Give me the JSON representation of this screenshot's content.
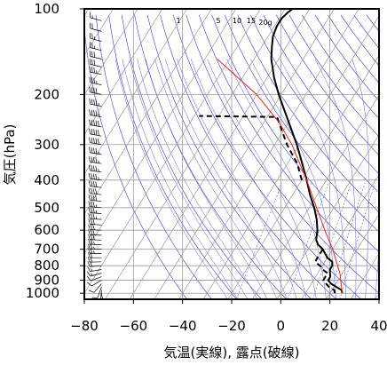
{
  "chart_data": {
    "type": "line",
    "subtype": "skew-T log-P diagram",
    "xlabel": "気温(実線), 露点(破線)",
    "ylabel": "気圧(hPa)",
    "xlim": [
      -80,
      40
    ],
    "ylim": [
      1050,
      100
    ],
    "y_scale": "log",
    "x_ticks": [
      -80,
      -60,
      -40,
      -20,
      0,
      20,
      40
    ],
    "y_ticks": [
      100,
      200,
      300,
      400,
      500,
      600,
      700,
      800,
      900,
      1000
    ],
    "mixing_ratio_labels": [
      "1",
      "5",
      "10",
      "15",
      "20g"
    ],
    "grid": true,
    "series": [
      {
        "key": "temperature",
        "style": "solid",
        "color": "#000000",
        "points": [
          [
            1000,
            25
          ],
          [
            975,
            24
          ],
          [
            950,
            21
          ],
          [
            925,
            18
          ],
          [
            900,
            16
          ],
          [
            875,
            16
          ],
          [
            850,
            15
          ],
          [
            825,
            14
          ],
          [
            800,
            14
          ],
          [
            775,
            13
          ],
          [
            750,
            10
          ],
          [
            725,
            8
          ],
          [
            700,
            6
          ],
          [
            675,
            3
          ],
          [
            650,
            1
          ],
          [
            600,
            -1
          ],
          [
            550,
            -4
          ],
          [
            500,
            -8
          ],
          [
            450,
            -13
          ],
          [
            400,
            -18
          ],
          [
            350,
            -24
          ],
          [
            300,
            -31
          ],
          [
            250,
            -40
          ],
          [
            200,
            -51
          ],
          [
            175,
            -57
          ],
          [
            150,
            -63
          ],
          [
            135,
            -66
          ],
          [
            125,
            -68
          ],
          [
            115,
            -69
          ],
          [
            108,
            -69
          ],
          [
            103,
            -68
          ],
          [
            100,
            -67
          ]
        ]
      },
      {
        "key": "dewpoint",
        "style": "dashed",
        "color": "#000000",
        "points": [
          [
            1000,
            22
          ],
          [
            975,
            21
          ],
          [
            950,
            18
          ],
          [
            925,
            16
          ],
          [
            900,
            14
          ],
          [
            850,
            14
          ],
          [
            825,
            11
          ],
          [
            800,
            9
          ],
          [
            775,
            6
          ],
          [
            750,
            6
          ],
          [
            700,
            6
          ],
          [
            null,
            null
          ],
          [
            400,
            -20
          ],
          [
            350,
            -26
          ],
          [
            300,
            -35
          ],
          [
            250,
            -44
          ],
          [
            240,
            -46
          ],
          [
            238,
            -78
          ]
        ]
      },
      {
        "key": "parcel",
        "style": "solid",
        "color": "#e8241e",
        "points": [
          [
            1000,
            25
          ],
          [
            850,
            19
          ],
          [
            700,
            10
          ],
          [
            600,
            2
          ],
          [
            500,
            -7
          ],
          [
            400,
            -18
          ],
          [
            300,
            -33
          ],
          [
            250,
            -44
          ],
          [
            200,
            -60
          ],
          [
            150,
            -85
          ]
        ]
      }
    ],
    "wind_barbs": {
      "x_position_temperature": -73,
      "levels_hPa": [
        1000,
        975,
        950,
        925,
        900,
        875,
        850,
        825,
        800,
        775,
        750,
        725,
        700,
        675,
        650,
        625,
        600,
        575,
        550,
        525,
        500,
        475,
        450,
        425,
        400,
        375,
        350,
        325,
        300,
        280,
        260,
        240,
        220,
        200,
        185,
        170,
        160,
        150,
        140,
        130,
        120,
        110,
        100
      ],
      "direction_deg": [
        170,
        185,
        200,
        220,
        240,
        250,
        255,
        260,
        265,
        268,
        270,
        270,
        270,
        272,
        272,
        272,
        272,
        274,
        274,
        275,
        275,
        276,
        276,
        277,
        277,
        278,
        278,
        279,
        279,
        280,
        280,
        280,
        281,
        281,
        282,
        282,
        283,
        283,
        284,
        284,
        285,
        285,
        285
      ],
      "speed_kt": [
        5,
        5,
        10,
        10,
        10,
        10,
        15,
        15,
        20,
        20,
        20,
        25,
        25,
        25,
        30,
        30,
        30,
        30,
        35,
        35,
        35,
        40,
        40,
        40,
        45,
        45,
        45,
        45,
        50,
        50,
        50,
        45,
        45,
        40,
        35,
        35,
        30,
        30,
        25,
        25,
        20,
        15,
        15
      ]
    }
  }
}
